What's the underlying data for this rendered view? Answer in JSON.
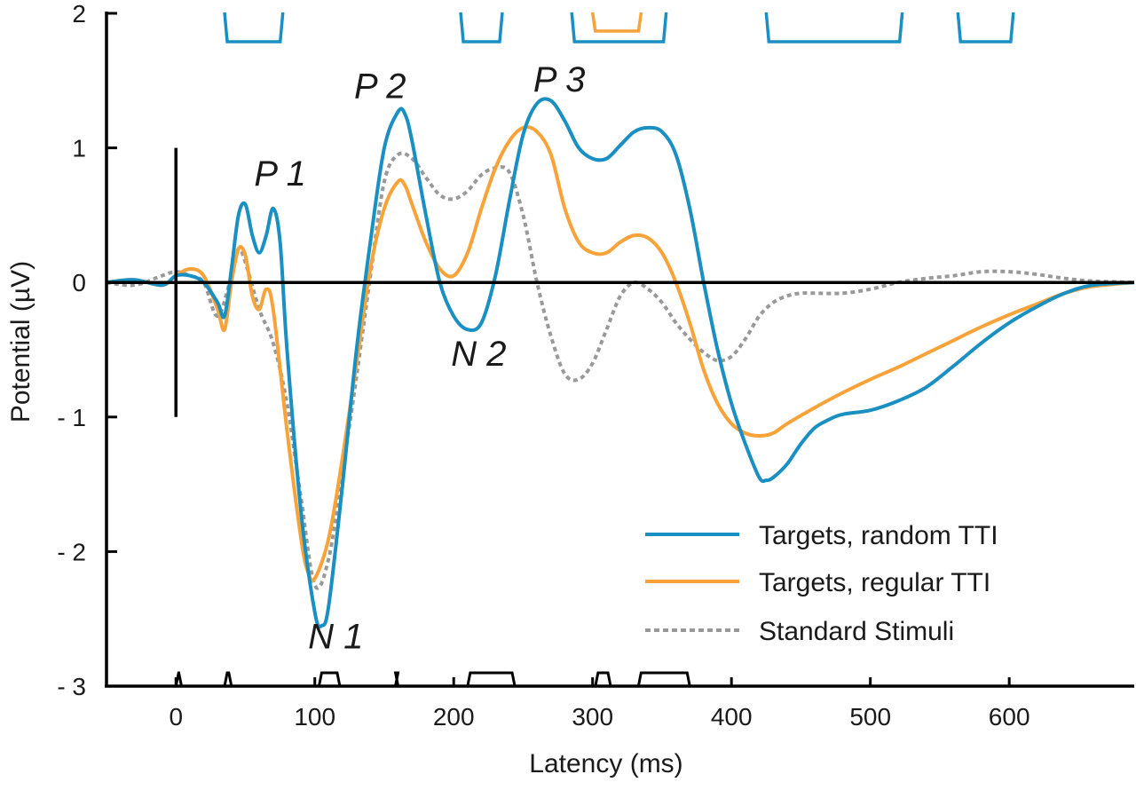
{
  "chart_data": {
    "type": "line",
    "xlabel": "Latency (ms)",
    "ylabel": "Potential (µV)",
    "xlim": [
      -50,
      690
    ],
    "ylim": [
      -3,
      2
    ],
    "x_ticks": [
      0,
      100,
      200,
      300,
      400,
      500,
      600
    ],
    "x_tick_labels": [
      "0",
      "100",
      "200",
      "300",
      "400",
      "500",
      "600"
    ],
    "y_ticks": [
      2,
      1,
      0,
      -1,
      -2,
      -3
    ],
    "y_tick_labels": [
      "2",
      "1",
      "0",
      "- 1",
      "- 2",
      "- 3"
    ],
    "grid": false,
    "legend_position": "bottom-right",
    "stimulus_marker": {
      "x": 0,
      "y_range": [
        -1,
        1
      ]
    },
    "peak_labels": [
      {
        "text": "P 1",
        "x": 75,
        "y": 0.72
      },
      {
        "text": "P 2",
        "x": 147,
        "y": 1.37
      },
      {
        "text": "P 3",
        "x": 276,
        "y": 1.42
      },
      {
        "text": "N 2",
        "x": 218,
        "y": -0.62
      },
      {
        "text": "N 1",
        "x": 115,
        "y": -2.72
      }
    ],
    "series": [
      {
        "name": "Targets, random TTI",
        "color": "#1a8fc2",
        "style": "solid",
        "x": [
          -50,
          -30,
          -10,
          0,
          10,
          20,
          30,
          35,
          40,
          45,
          50,
          55,
          60,
          65,
          70,
          75,
          80,
          90,
          100,
          105,
          110,
          120,
          130,
          140,
          150,
          160,
          165,
          170,
          180,
          190,
          200,
          210,
          220,
          230,
          240,
          250,
          260,
          270,
          280,
          290,
          300,
          310,
          320,
          330,
          340,
          350,
          360,
          370,
          380,
          390,
          400,
          410,
          420,
          425,
          430,
          440,
          450,
          460,
          470,
          480,
          500,
          520,
          540,
          560,
          580,
          600,
          620,
          640,
          660,
          690
        ],
        "values": [
          0.0,
          0.02,
          -0.02,
          0.05,
          0.05,
          0.0,
          -0.15,
          -0.25,
          0.1,
          0.5,
          0.58,
          0.35,
          0.22,
          0.35,
          0.55,
          0.3,
          -0.5,
          -1.7,
          -2.45,
          -2.55,
          -2.4,
          -1.5,
          -0.5,
          0.3,
          1.0,
          1.27,
          1.25,
          1.05,
          0.5,
          0.0,
          -0.25,
          -0.35,
          -0.3,
          0.05,
          0.6,
          1.1,
          1.33,
          1.35,
          1.2,
          1.0,
          0.92,
          0.92,
          1.02,
          1.12,
          1.15,
          1.12,
          0.95,
          0.55,
          0.0,
          -0.5,
          -0.9,
          -1.2,
          -1.45,
          -1.47,
          -1.45,
          -1.35,
          -1.2,
          -1.08,
          -1.02,
          -0.98,
          -0.95,
          -0.88,
          -0.78,
          -0.62,
          -0.45,
          -0.3,
          -0.18,
          -0.08,
          -0.02,
          0.0
        ]
      },
      {
        "name": "Targets, regular TTI",
        "color": "#f7a33a",
        "style": "solid",
        "x": [
          -50,
          -30,
          -10,
          0,
          10,
          20,
          30,
          35,
          40,
          45,
          50,
          55,
          60,
          65,
          70,
          80,
          90,
          95,
          100,
          110,
          120,
          130,
          140,
          150,
          160,
          165,
          170,
          180,
          190,
          200,
          210,
          220,
          230,
          240,
          250,
          260,
          270,
          280,
          290,
          300,
          310,
          320,
          330,
          340,
          350,
          360,
          370,
          380,
          390,
          400,
          410,
          420,
          430,
          440,
          460,
          480,
          500,
          520,
          540,
          560,
          580,
          600,
          620,
          640,
          660,
          690
        ],
        "values": [
          0.0,
          0.02,
          -0.02,
          0.05,
          0.1,
          0.05,
          -0.2,
          -0.35,
          0.0,
          0.25,
          0.2,
          -0.1,
          -0.2,
          -0.05,
          -0.2,
          -1.1,
          -1.9,
          -2.15,
          -2.2,
          -1.9,
          -1.3,
          -0.6,
          0.1,
          0.55,
          0.75,
          0.72,
          0.58,
          0.3,
          0.1,
          0.05,
          0.22,
          0.55,
          0.85,
          1.05,
          1.15,
          1.12,
          0.95,
          0.55,
          0.3,
          0.22,
          0.22,
          0.3,
          0.35,
          0.33,
          0.22,
          0.0,
          -0.3,
          -0.65,
          -0.9,
          -1.05,
          -1.12,
          -1.14,
          -1.12,
          -1.05,
          -0.93,
          -0.82,
          -0.72,
          -0.63,
          -0.53,
          -0.43,
          -0.33,
          -0.24,
          -0.16,
          -0.08,
          -0.03,
          0.0
        ]
      },
      {
        "name": "Standard Stimuli",
        "color": "#999999",
        "style": "dotted",
        "x": [
          -50,
          -30,
          -10,
          0,
          10,
          20,
          30,
          40,
          45,
          50,
          60,
          70,
          80,
          90,
          100,
          110,
          120,
          130,
          140,
          150,
          160,
          170,
          180,
          190,
          200,
          210,
          220,
          230,
          240,
          250,
          260,
          270,
          280,
          290,
          300,
          310,
          320,
          330,
          340,
          350,
          360,
          370,
          380,
          390,
          400,
          410,
          420,
          430,
          440,
          450,
          460,
          480,
          500,
          520,
          540,
          560,
          580,
          600,
          620,
          640,
          660,
          690
        ],
        "values": [
          0.0,
          -0.02,
          0.05,
          0.08,
          0.05,
          0.0,
          -0.25,
          0.05,
          0.25,
          0.15,
          -0.2,
          -0.45,
          -0.9,
          -1.6,
          -2.25,
          -2.05,
          -1.4,
          -0.7,
          0.05,
          0.75,
          0.95,
          0.92,
          0.78,
          0.65,
          0.62,
          0.68,
          0.8,
          0.85,
          0.82,
          0.5,
          0.0,
          -0.4,
          -0.68,
          -0.72,
          -0.6,
          -0.35,
          -0.1,
          0.0,
          -0.05,
          -0.15,
          -0.3,
          -0.42,
          -0.52,
          -0.58,
          -0.55,
          -0.42,
          -0.25,
          -0.15,
          -0.1,
          -0.08,
          -0.08,
          -0.08,
          -0.05,
          0.0,
          0.03,
          0.05,
          0.08,
          0.08,
          0.06,
          0.03,
          0.01,
          0.0
        ]
      }
    ],
    "significance_bars": [
      {
        "color": "#1a8fc2",
        "level": "top",
        "intervals": [
          [
            35,
            77
          ],
          [
            205,
            235
          ],
          [
            285,
            353
          ],
          [
            425,
            523
          ],
          [
            563,
            603
          ]
        ]
      },
      {
        "color": "#f7a33a",
        "level": "top-inner",
        "intervals": [
          [
            300,
            335
          ]
        ]
      },
      {
        "color": "#000000",
        "level": "bottom",
        "intervals": [
          [
            0,
            4
          ],
          [
            35,
            40
          ],
          [
            103,
            118
          ],
          [
            158,
            160
          ],
          [
            210,
            244
          ],
          [
            302,
            313
          ],
          [
            333,
            370
          ]
        ]
      }
    ]
  }
}
